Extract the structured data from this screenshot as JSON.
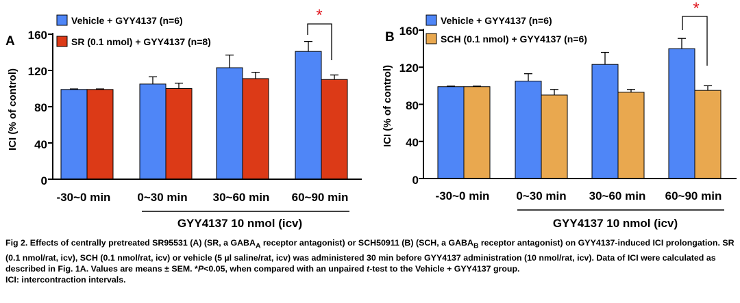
{
  "colors": {
    "vehicle": "#4f86f7",
    "sr": "#dc3a17",
    "sch": "#e9a84f",
    "sig": "#e0161e"
  },
  "chart_data": [
    {
      "type": "bar",
      "panel": "A",
      "ylabel": "ICI (% of control)",
      "ylim": [
        0,
        160
      ],
      "yticks": [
        "0",
        "40",
        "80",
        "120",
        "160"
      ],
      "categories": [
        "-30~0 min",
        "0~30 min",
        "30~60 min",
        "60~90 min"
      ],
      "bracket_label": "GYY4137 10 nmol (icv)",
      "legend_position": "top-left",
      "series": [
        {
          "name": "Vehicle + GYY4137 (n=6)",
          "color": "#4f86f7",
          "values": [
            99,
            105,
            123,
            141
          ],
          "errors": [
            0.6,
            8,
            14,
            11
          ]
        },
        {
          "name": "SR (0.1 nmol) + GYY4137 (n=8)",
          "color": "#dc3a17",
          "values": [
            99,
            100,
            111,
            110
          ],
          "errors": [
            0.6,
            6,
            7,
            5
          ]
        }
      ],
      "significance": {
        "category_index": 3,
        "label": "*"
      }
    },
    {
      "type": "bar",
      "panel": "B",
      "ylabel": "ICI (% of control)",
      "ylim": [
        0,
        160
      ],
      "yticks": [
        "0",
        "40",
        "80",
        "120",
        "160"
      ],
      "categories": [
        "-30~0 min",
        "0~30 min",
        "30~60 min",
        "60~90 min"
      ],
      "bracket_label": "GYY4137 10 nmol (icv)",
      "legend_position": "top-left",
      "series": [
        {
          "name": "Vehicle + GYY4137 (n=6)",
          "color": "#4f86f7",
          "values": [
            99,
            105,
            123,
            140
          ],
          "errors": [
            0.6,
            8,
            13,
            11
          ]
        },
        {
          "name": "SCH (0.1 nmol) + GYY4137 (n=6)",
          "color": "#e9a84f",
          "values": [
            99,
            90,
            93,
            95
          ],
          "errors": [
            0.6,
            6,
            3,
            5
          ]
        }
      ],
      "significance": {
        "category_index": 3,
        "label": "*"
      }
    }
  ],
  "caption": {
    "fig_label": "Fig 2.",
    "s1": " Effects of centrally pretreated SR95531 (A) (SR, a GABA",
    "sub_a": "A",
    "s2": " receptor antagonist) or SCH50911 (B) (SCH, a GABA",
    "sub_b": "B",
    "s3": " receptor antagonist) on GYY4137-induced ICI prolongation.  SR (0.1 nmol/rat, icv), SCH (0.1 nmol/rat, icv) or vehicle (5 µl saline/rat, icv) was administered 30 min before GYY4137 administration (10 nmol/rat, icv).  Data of ICI were calculated as described in Fig. 1A.  Values are means ± SEM.  *",
    "p_italic": "P",
    "s4": "<0.05, when compared with an unpaired ",
    "t_italic": "t",
    "s5": "-test to the Vehicle + GYY4137 group.",
    "line2": "ICI: intercontraction intervals."
  }
}
